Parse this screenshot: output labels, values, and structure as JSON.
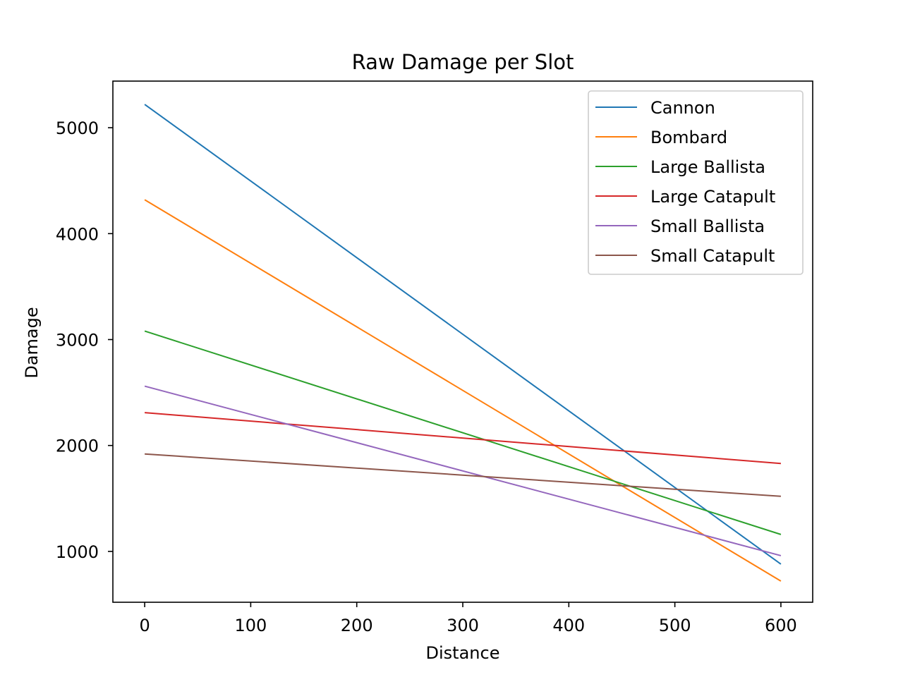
{
  "chart_data": {
    "type": "line",
    "title": "Raw Damage per Slot",
    "xlabel": "Distance",
    "ylabel": "Damage",
    "xlim": [
      -30,
      630
    ],
    "ylim": [
      520,
      5440
    ],
    "xticks": [
      0,
      100,
      200,
      300,
      400,
      500,
      600
    ],
    "yticks": [
      1000,
      2000,
      3000,
      4000,
      5000
    ],
    "grid": false,
    "legend_position": "top-right",
    "series": [
      {
        "name": "Cannon",
        "color": "#1f77b4",
        "x": [
          0,
          600
        ],
        "y": [
          5220,
          880
        ]
      },
      {
        "name": "Bombard",
        "color": "#ff7f0e",
        "x": [
          0,
          600
        ],
        "y": [
          4320,
          720
        ]
      },
      {
        "name": "Large Ballista",
        "color": "#2ca02c",
        "x": [
          0,
          600
        ],
        "y": [
          3080,
          1160
        ]
      },
      {
        "name": "Large Catapult",
        "color": "#d62728",
        "x": [
          0,
          600
        ],
        "y": [
          2310,
          1830
        ]
      },
      {
        "name": "Small Ballista",
        "color": "#9467bd",
        "x": [
          0,
          600
        ],
        "y": [
          2560,
          960
        ]
      },
      {
        "name": "Small Catapult",
        "color": "#8c564b",
        "x": [
          0,
          600
        ],
        "y": [
          1920,
          1520
        ]
      }
    ]
  }
}
